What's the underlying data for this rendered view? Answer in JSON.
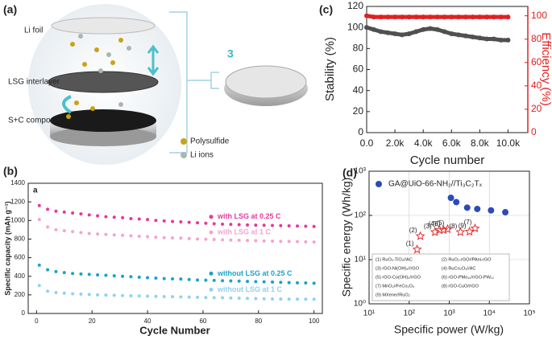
{
  "figure": {
    "panel_labels": [
      "(a)",
      "(b)",
      "(c)",
      "(d)"
    ],
    "illustration": {
      "layers": [
        "Li foil",
        "LSG interlayer",
        "S+C composite"
      ],
      "legend": [
        "Polysulfide",
        "Li ions"
      ],
      "callout": "3"
    }
  },
  "chart_data": [
    {
      "type": "scatter",
      "title": "a",
      "xlabel": "Cycle Number",
      "ylabel": "Specific capacity (mAh g⁻¹)",
      "xlim": [
        -3,
        103
      ],
      "xticks": [
        0,
        20,
        40,
        60,
        80,
        100
      ],
      "ylim": [
        0,
        1400
      ],
      "yticks": [
        0,
        200,
        400,
        600,
        800,
        1000,
        1200,
        1400
      ],
      "x": [
        1,
        4,
        7,
        10,
        13,
        16,
        19,
        22,
        25,
        28,
        31,
        34,
        37,
        40,
        43,
        46,
        49,
        52,
        55,
        58,
        61,
        64,
        67,
        70,
        73,
        76,
        79,
        82,
        85,
        88,
        91,
        94,
        97,
        100
      ],
      "marker": "circle",
      "legend": "right",
      "series": [
        {
          "name": "with LSG at 0.25 C",
          "color": "#e6389e",
          "values": [
            1160,
            1120,
            1100,
            1090,
            1080,
            1070,
            1060,
            1050,
            1040,
            1035,
            1030,
            1020,
            1015,
            1010,
            1000,
            995,
            990,
            985,
            980,
            975,
            970,
            965,
            960,
            958,
            955,
            952,
            950,
            948,
            946,
            944,
            942,
            940,
            938,
            936
          ]
        },
        {
          "name": "with LSG at 1 C",
          "color": "#f5a3cf",
          "values": [
            1010,
            930,
            900,
            890,
            880,
            870,
            860,
            855,
            850,
            845,
            840,
            835,
            830,
            825,
            820,
            815,
            812,
            810,
            805,
            800,
            798,
            795,
            792,
            790,
            788,
            785,
            782,
            780,
            778,
            776,
            774,
            772,
            770,
            768
          ]
        },
        {
          "name": "without LSG at 0.25 C",
          "color": "#1aa3c8",
          "values": [
            520,
            470,
            450,
            440,
            430,
            425,
            420,
            415,
            410,
            405,
            400,
            395,
            390,
            385,
            380,
            375,
            372,
            370,
            365,
            360,
            358,
            355,
            352,
            350,
            348,
            345,
            342,
            340,
            338,
            335,
            332,
            330,
            328,
            325
          ]
        },
        {
          "name": "without LSG at 1 C",
          "color": "#8fd3ec",
          "values": [
            300,
            240,
            225,
            218,
            212,
            208,
            204,
            200,
            198,
            195,
            192,
            190,
            188,
            186,
            184,
            182,
            180,
            178,
            176,
            174,
            172,
            170,
            168,
            166,
            164,
            162,
            160,
            158,
            157,
            156,
            155,
            154,
            153,
            152
          ]
        }
      ]
    },
    {
      "type": "line",
      "xlabel": "Cycle number",
      "ylabel": "Stability (%)",
      "y2label": "Efficiency (%)",
      "y2_color": "#e02020",
      "xlim": [
        0,
        11400
      ],
      "xticks": [
        {
          "value": 0,
          "label": "0.0"
        },
        {
          "value": 2000,
          "label": "2.0k"
        },
        {
          "value": 4000,
          "label": "4.0k"
        },
        {
          "value": 6000,
          "label": "6.0k"
        },
        {
          "value": 8000,
          "label": "8.0k"
        },
        {
          "value": 10000,
          "label": "10.0k"
        }
      ],
      "ylim": [
        0,
        120
      ],
      "yticks": [
        0,
        20,
        40,
        60,
        80,
        100,
        120
      ],
      "y2lim": [
        0,
        108
      ],
      "y2ticks": [
        0,
        20,
        40,
        60,
        80,
        100
      ],
      "x": [
        0,
        500,
        1000,
        1500,
        2000,
        2500,
        3000,
        3500,
        4000,
        4500,
        5000,
        5500,
        6000,
        6500,
        7000,
        7500,
        8000,
        8500,
        9000,
        9500,
        10000
      ],
      "marker": "circle",
      "series": [
        {
          "color": "#505050",
          "values": [
            100,
            98,
            96,
            95,
            94,
            93,
            94,
            96,
            98,
            99,
            98,
            96,
            94,
            93,
            92,
            91,
            90,
            89,
            89,
            88,
            88
          ]
        },
        {
          "color": "#e02020",
          "axis": "y2",
          "values": [
            100,
            99,
            99,
            99,
            99,
            99,
            99,
            99,
            99,
            99,
            99,
            99,
            99,
            99,
            99,
            99,
            99,
            99,
            99,
            99,
            99
          ]
        }
      ]
    },
    {
      "type": "scatter",
      "xlog": true,
      "ylog": true,
      "grid": true,
      "xlabel": "Specific power (W/kg)",
      "ylabel": "Specific energy (Wh/kg)",
      "xlim": [
        10,
        100000
      ],
      "xticks": [
        {
          "value": 10,
          "label": "10¹"
        },
        {
          "value": 100,
          "label": "10²"
        },
        {
          "value": 1000,
          "label": "10³"
        },
        {
          "value": 10000,
          "label": "10⁴"
        },
        {
          "value": 100000,
          "label": "10⁵"
        }
      ],
      "ylim": [
        1,
        1000
      ],
      "yticks": [
        {
          "value": 1,
          "label": "10⁰"
        },
        {
          "value": 10,
          "label": "10¹"
        },
        {
          "value": 100,
          "label": "10²"
        },
        {
          "value": 1000,
          "label": "10³"
        }
      ],
      "legend": "top",
      "series": [
        {
          "name": "GA@UiO-66-NH₂//Ti₃C₂Tₓ",
          "color": "#2c4bb5",
          "marker": "circle",
          "x": [
            1100,
            1500,
            2800,
            5000,
            11000,
            25000
          ],
          "values": [
            250,
            200,
            150,
            140,
            130,
            118
          ]
        },
        {
          "color": "#e03030",
          "marker": "star",
          "x": [
            158,
            190,
            440,
            575,
            910,
            720,
            4400,
            1900,
            3200
          ],
          "values": [
            17,
            34,
            42,
            47,
            49,
            47,
            51,
            42,
            43
          ],
          "labels": [
            "(1)",
            "(2)",
            "(3)",
            "(4)",
            "(5)",
            "(6)",
            "(7)",
            "(8)",
            "(9)"
          ]
        }
      ],
      "notes": [
        "(1) RuO₂-TiO₂//AC",
        "(2) RuO₂-rGO//PAni-rGO",
        "(3) rGO-Ni(OH)₂//rGO",
        "(4) RuCo₂O₄//AC",
        "(5) rGO-Co(OH)₂//rGO",
        "(6) rGO-PMo₁₂//rGO-PW₁₂",
        "(7) MnO₂//FeCo₂O₄",
        "(8) rGO-CuO//rGO",
        "(9) MXene//RuO₂"
      ]
    }
  ]
}
